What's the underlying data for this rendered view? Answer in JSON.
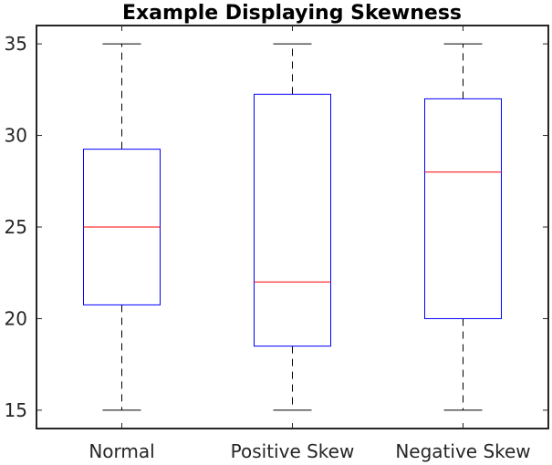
{
  "chart_data": {
    "type": "boxplot",
    "title": "Example Displaying Skewness",
    "xlabel": "",
    "ylabel": "",
    "ylim": [
      14,
      36
    ],
    "yticks": [
      15,
      20,
      25,
      30,
      35
    ],
    "grid": false,
    "categories": [
      "Normal",
      "Positive Skew",
      "Negative Skew"
    ],
    "boxes": [
      {
        "category": "Normal",
        "min": 15,
        "q1": 20.75,
        "median": 25,
        "q3": 29.25,
        "max": 35
      },
      {
        "category": "Positive Skew",
        "min": 15,
        "q1": 18.5,
        "median": 22,
        "q3": 32.25,
        "max": 35
      },
      {
        "category": "Negative Skew",
        "min": 15,
        "q1": 20,
        "median": 28,
        "q3": 32,
        "max": 35
      }
    ],
    "colors": {
      "box": "#0000ff",
      "median": "#ff0000",
      "whisker": "#000000",
      "axes": "#262626"
    }
  }
}
